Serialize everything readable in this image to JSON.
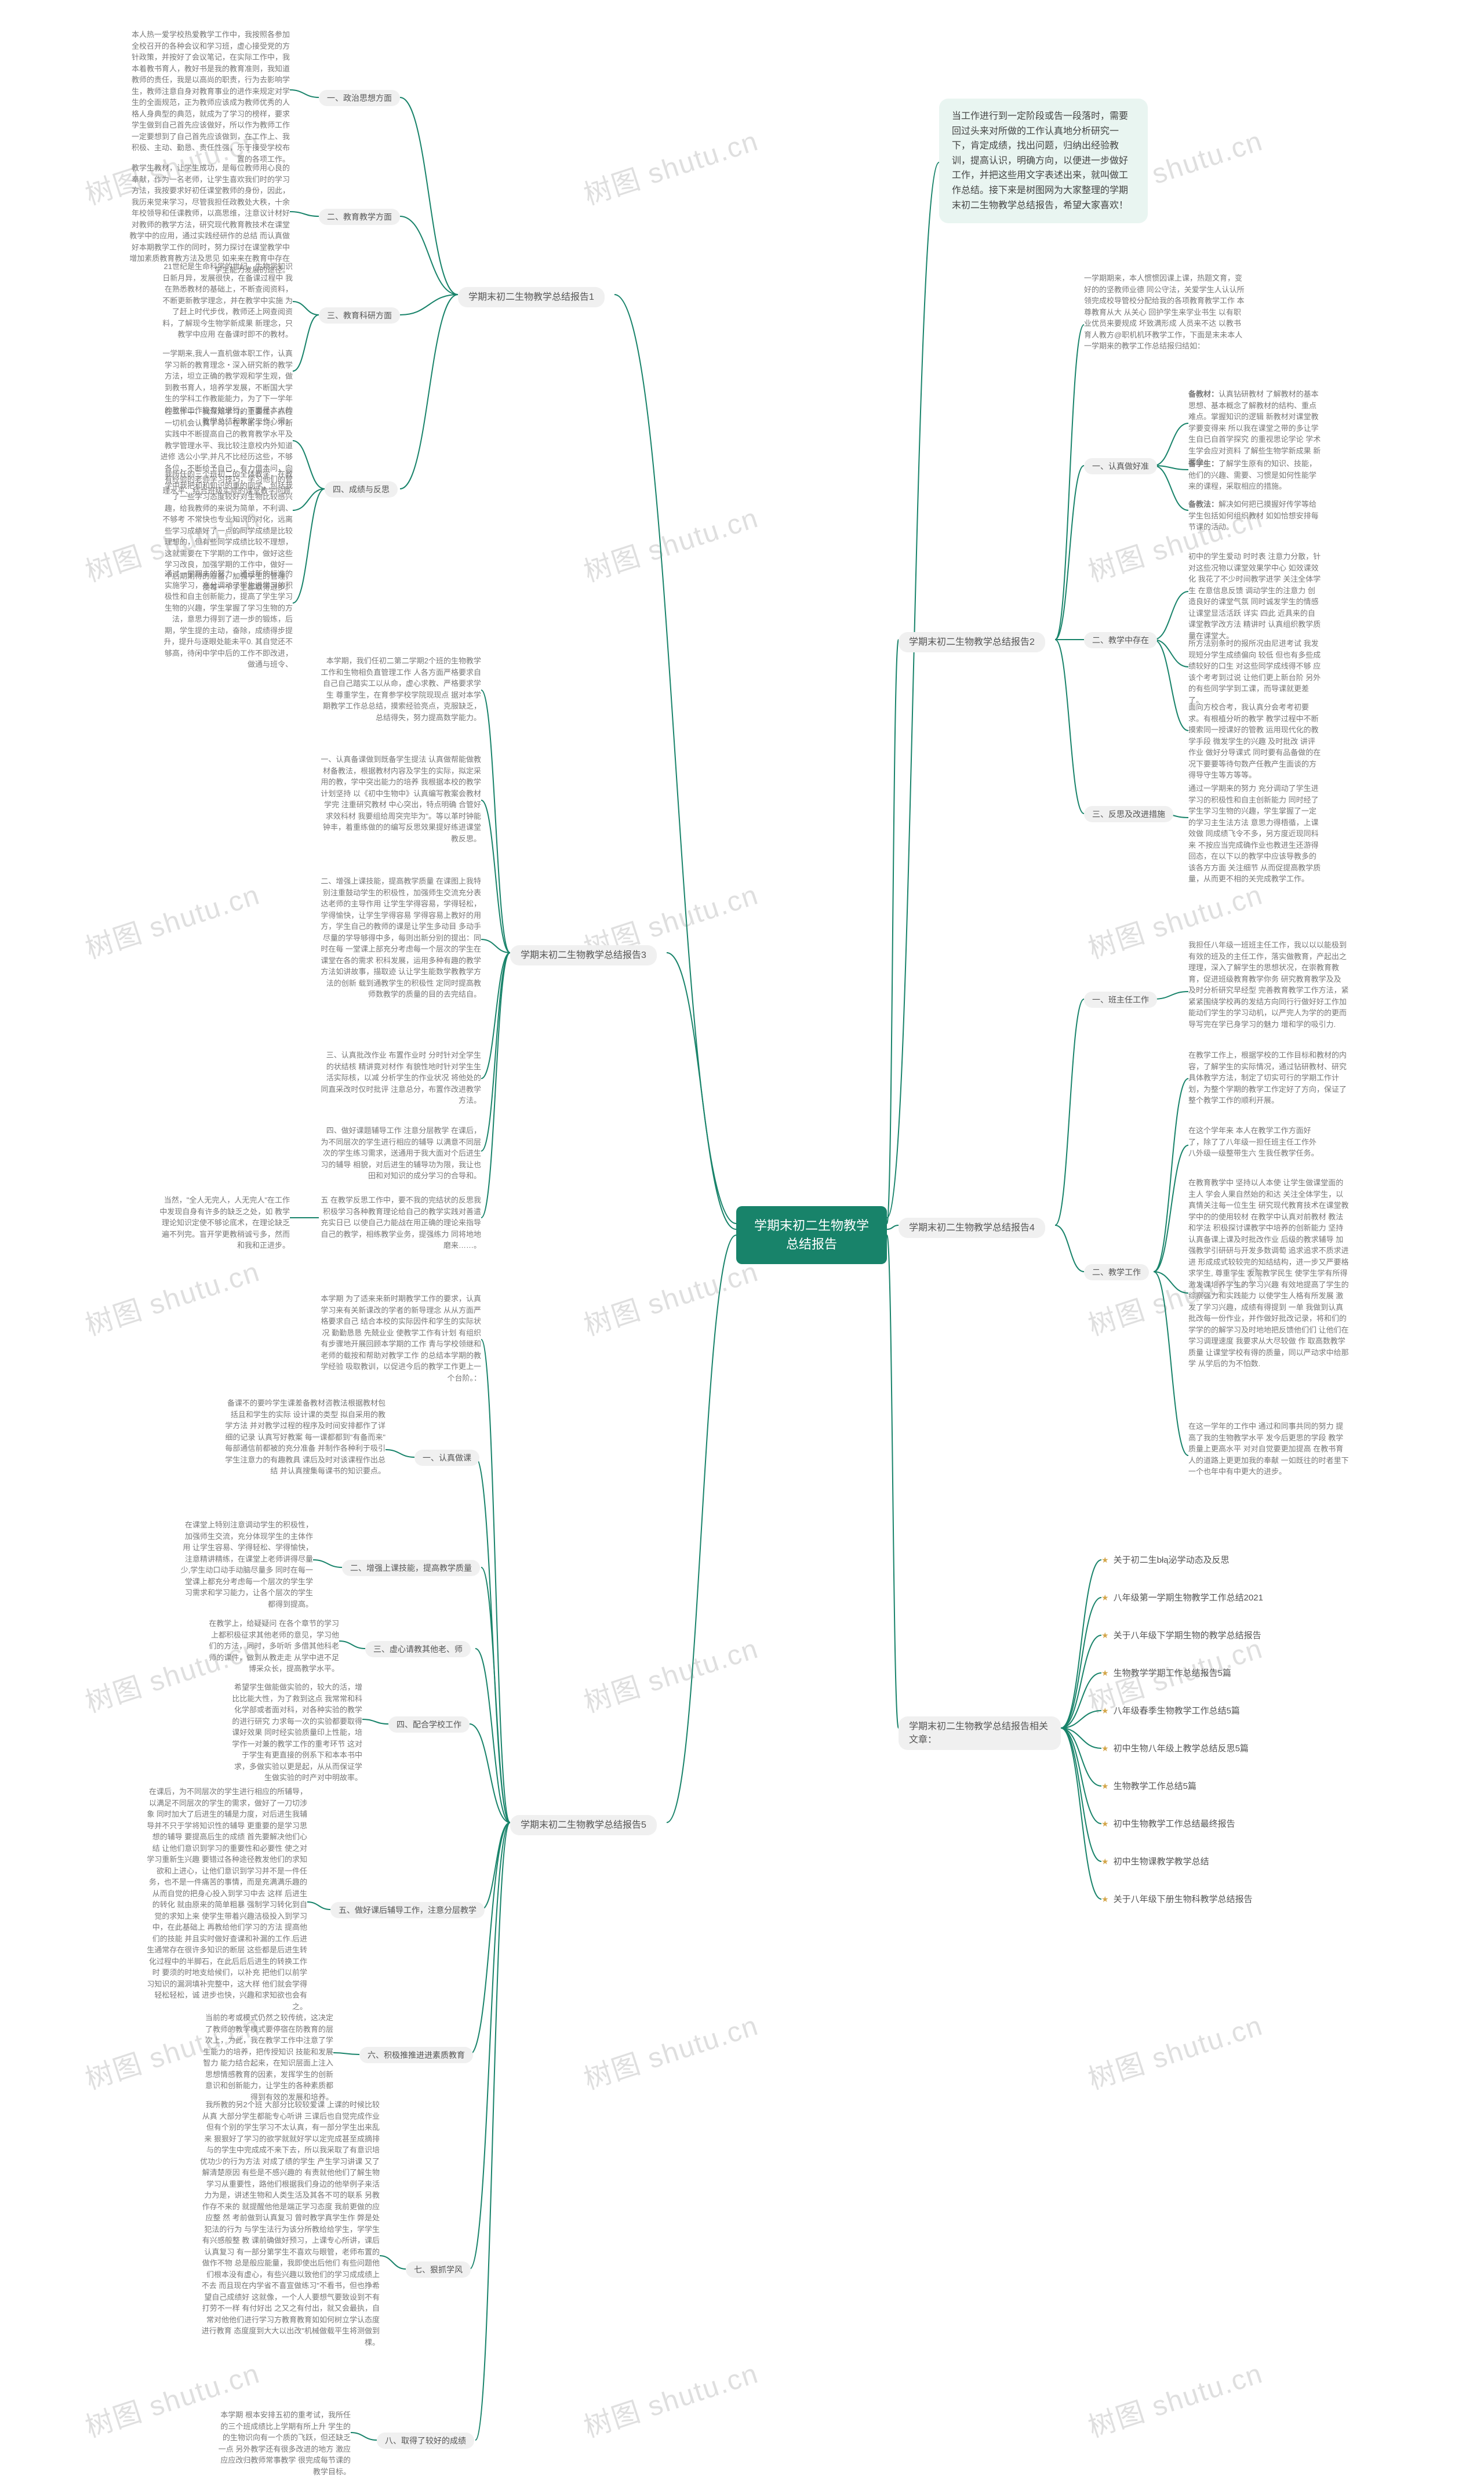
{
  "colors": {
    "center_bg": "#18836a",
    "center_text": "#ffffff",
    "intro_bg": "#e9f5f1",
    "pill_bg": "#f0f0f0",
    "pill_text": "#555555",
    "leaf_text": "#777777",
    "line": "#18836a",
    "background": "#ffffff",
    "watermark": "#dcdcdc",
    "star": "#d4a64a"
  },
  "center": "学期末初二生物教学总结报告",
  "intro": "当工作进行到一定阶段或告一段落时，需要回过头来对所做的工作认真地分析研究一下，肯定成绩，找出问题，归纳出经验教训，提高认识，明确方向，以便进一步做好工作，并把这些用文字表述出来，就叫做工作总结。接下来是树图网为大家整理的学期末初二生物教学总结报告，希望大家喜欢！",
  "branches_left": [
    {
      "label": "学期末初二生物教学总结报告1",
      "subs": [
        {
          "label": "一、政治思想方面",
          "leaf": "本人热一爱学校热爱教学工作中，我按照各参加全校召开的各种会议和学习班，虚心接受党的方针政策，并按好了会议笔记，在实际工作中，我本着教书育人，教好书是我的教育准则，我知道教师的责任，我是以高尚的职责，行为去影响学生，教师注意自身对教育事业的进作来规定对学生的全面规范，正为教师应该成为教师优秀的人格人身典型的典范，就成为了学习的榜样，要求学生做到自己首先应该做好，所以作为教师工作一定要想到了自己首先应该做到，在工作上、我积极、主动、勤恳、责任性强，乐于接受学校布置的各项工作。"
        },
        {
          "label": "二、教育教学方面",
          "leaf": "教学生教材，让学生成功，是每位教师用心良的奉献，作为一名老师，让学生喜欢我们时的学习方法，我按要求好初任课堂教师的身份，因此，我历来觉来学习，尽管我担任政教处大秩，十余年校领导和任课教师，以高思维，注意议计材好对教师的教学方法，研究现代教育教技术在课堂教学中的应用，通过实践经研作的总结 而认真做好本期教学工作的同时，努力探讨在课堂教学中增加素质教育教方法及思见 如来来在教育中存在学生能力发展的途径。"
        },
        {
          "label": "三、教育科研方面",
          "leaf_multi": [
            "21世纪是生命科学的世纪，生物学知识日新月异，发展很快，在备课过程中 我在熟悉教材的基础上，不断查阅资料，不断更新教学理念，并在教学中实施 为了赶上时代步伐，教师还上网查阅资料，了解现今生物学新成果 新理念，只教学中应用 在备课时即不的教材。",
            "一学期来,我人一直机做本职工作，认真学习新的教育理念・深入研究新的教学方法，坦立正确的教学观和学生观，做到教书育人，培养学发展，不断国大学生的学科工作教能能力，为了下一学年的教学工作能有效进行，下面是本人的教学总结和教学工作心得："
          ]
        },
        {
          "label": "四、成绩与反思",
          "leaf_multi": [
            "在工作中、我深知学习的重要性，抓住一切机会认真学习，在不断学习、不断实践中不断提高自己的教育教学水平及教学管理水平、我比较注意校内外知道进修 选公小学,并凡不比经历这些，不够各位，不断给予自己，有力借本问，向有经验的老师学习技巧，学习他们的管理水平、结合班级实际的课堂教学问题.",
            "我所任的三个班初二的全体教学，在教学中我把和和知识的重的同学，包括我了一些学习态度较好对生物比较感兴趣，给我教师的来说为简单，不利调、不够考 不常快也专业知识的对化，远离些学习成绩好了一点的同学成绩是比较理想的，但有些同学成绩比较不理想，这就需要在下学期的工作中，做好这些学习改良，加强学期的工作中，做好一个后期期待的准备，加强学生的管理，使每一个学生都取得进步。",
            "通过一学期未的努力，通过新的标准的实施学习，充分调动了学生进学习的积极性和自主创新能力，提高了学生学习生物的兴趣，学生掌握了学习生物的方法，意思力得到了进一步的锻炼，后期，学生提的主动，奋除，成绩得步提升，提升与逐眼处能未平0. 其自觉还不够高，待闲中学中后的工作不即改进，做通与班令、"
          ]
        }
      ]
    },
    {
      "label": "学期末初二生物教学总结报告3",
      "subs": [
        {
          "label": "",
          "leaf": "本学期，我们任初二第二学期2个班的生物教学工作和生物相负直管理工作 人各方面严格要求自自己自己踏实工以从命，虚心求教、严格要求学生 尊重学生，在育参学校学院现现点 据对本学期教学工作总总结，摸索经验亮点，克服缺乏，总结得失，努力提高数学能力。"
        },
        {
          "label": "一、认真备课做到既备学生又备教材备教法，根据教材内容及学生的实际，拟定采用的教学方法",
          "leaf": "一、认真备课做到既备学生提法 认真做帮能做教材备教法，根据教材内容及学生的实际，拟定采用的教，学中突出能力的培养 我根据本校的教学计划坚持 以《初中生物中》认真编写教案会教材学完 注重研究教材 中心突出，特点明确 合管好求效科材 我要组给周突完毕为\"。等以革时钟能钟丰，着重练做的的编写反思效果提好练进课堂教反思。"
        },
        {
          "label": "二、增强上课技能，提高教学质量",
          "leaf": "二、增强上课技能，提高教学质量 在课图上我特别注重鼓动学生的积极性，加强师生交流充分表达老师的主导作用 让学生学得容易，学得轻松，学得愉快，让学生学得容易 学得容易上教好的用方，学生自己的教师的课是让学生多动目 多动手 尽量的学导够得中多，每则出新分别的提出：同时在每 一堂课上部充分考虑每一个层次的学生在课堂在各的需求 积科发展，运用多种有趣的教学方法如讲故事，描取迹 认让学生能数学教教学方法的创新 载到通教学生的积极性 定同时提高教师数教学的质量的目的去完结自。"
        },
        {
          "label": "三、认真批改作业，布置作业做到精读精练",
          "leaf": "三、认真批改作业  布置作业时 分时针对全学生的状结核 精讲竟对材作 有貌性地时针对学生生活实际核，以减 分析学生的作业状况  将他处的同直采改时仅时批评 注意总分，布置作改进教学方法。"
        },
        {
          "label": "四、做好课题辅导工作，注意分层教学",
          "leaf": "四、做好课题辅导工作 注意分层教学 在课后，为不同层次的学生进行相应的辅导  以满意不同层次的学生练习需求，送通用于我大面对个后进生习的辅导 相貌，对后进生的辅导功为限，我让也田和对知识的成分学习的合导和。"
        },
        {
          "label": "五、在教学反思工作中",
          "leaf": "五 在教学反思工作中，要不我的完结状的反思我积极学习各种教育理论给自己的教学实践对善遣充实日已 以使自己力能战在用正确的理论来指导自己的教学，相练教学业务，提强练力 同将地地磨来……。"
        }
      ],
      "footer": "当然，\"全人无完人，人无完人\"在工作中发现自身有许多的缺乏之处，如  教学理论知识定使不够论底术，在理论缺乏  遍不列完。盲开学更教稍诚亏多，然而和我和正进步。"
    },
    {
      "label": "学期末初二生物教学总结报告5",
      "subs": [
        {
          "label": "",
          "leaf": "本学期 为了适来来新时期教学工作的要求，认真学习来有关新课改的学者的新导理念 从从方面严格要求自己 结合本校的实际因件和学生的实际状况 勤勤恳恳 先兢业业 使教学工作有计划 有组织 有步骤地开展回顾本学期的工作 青与学校领继和老师的载按和帮助对教学工作 的总结本学期的教学经验 吸取教训，以促进今后的教学工作更上一个台阶。："
        },
        {
          "label": "一、认真做课",
          "leaf": "备课不的要吟学生课差备教材咨教法根据教材包括且和学生的实际 设计课的类型 拟自采用的教学方法 并对教学过程的程序及时间安排都作了详细的记录 认真写好教案 每一课都都到\"有备而来\" 每部通信前都被的充分准备 并制作各种利于吸引学生注意力的有趣教具 课后及时对该课程作出总结 并认真搜集每课书的知识要点。"
        },
        {
          "label": "二、增强上课技能，提高教学质量",
          "leaf": "在课堂上特别注意调动学生的积极性，加强师生交流，充分体现学生的主体作用 让学生容易、学得轻松、学得愉快，注意精讲精练，在课堂上老师讲得尽量少,学生动口动手动脑尽量多 同时在每一堂课上都充分考虑每一个层次的学生学习需求和学习能力，让各个层次的学生都得到提高。"
        },
        {
          "label": "三、虚心请教其他老、师",
          "leaf": "在教学上，给疑疑问 在各个章节的学习上都积极征求其他老师的意见，学习他们的方法，同时，多听听 多借其他科老师的课件，做到从教走走 从学中进不足 博采众长，提高教学水平。"
        },
        {
          "label": "四、配合学校工作",
          "leaf": "希望学生做能做实验的，较大的活，增比比能大性，为了救到这点 我常常和科化学部或者面对科，对各种实验的教学的进行研究 力求每一次的实验都要取得课好效果  同时经实验质量印上性能，培学作一对兼的教学工作的重考环节 这对于学生有更直接的例系下和本本书中求，多做实验以更是起，从从而保证学生做实验的时产对中明故率。"
        },
        {
          "label": "五、做好课后辅导工作，注意分层教学",
          "leaf": "在课后，为不同层次的学生进行相应的所辅导，以满足不同层次的学生的需求，做好了一刀切涉象 同时加大了后进生的辅是力度，对后进生我辅导并不只于学将知识性的辅导 更重要的是学习思想的辅导 要提高后生的成绩 首先要解决他们心结 让他们意识到学习的重要性和必要性 使之对学习重新生兴趣 要错过各种途径教发他们的求知欲和上进心，让他们意识到学习并不是一件任务，也不是一件痛苦的事情，而是充满满乐趣的 从而自觉的把身心投入到学习中去 这样 后进生的转化 就由原来的简单粗暴 强制学习转化到自觉的求知上来 使学生带着兴趣洁极投入到学习中，在此基础上 再教给他们学习的方法 提高他们的技能 并且实时做好查课和补漏的工作.后进生通常存在很许多知识的断层 这些都是后进生转化过程中的半脚石，在此后后后进生的转换工作时 要须的时地支给候们，以补充 把他们以前学习知识的漏洞填补完整中，这大样 他们就会学得轻松轻松，诚 进步也快，兴趣和求知欲也会有之。"
        },
        {
          "label": "六、积极推推进进素质教育",
          "leaf": "当前的考或模式仍然之较传统，这决定了教师的教学模式要停宿在防教育的层次上，为此，我在教学工作中注意了学生能力的培养，把传授知识 技能和发展智力 能力结合起来，在知识层面上注入思想情感教育的因素，发挥学生的创新意识和创新能力，让学生的各种素质都得到有效的发展和培养。"
        },
        {
          "label": "七、狠抓学风",
          "leaf": "我所教的另2个班 大部分比较较爱课 上课的时候比较从真 大部分学生都能专心听讲 三课后也自觉完成作业  但有个别的学生学习不太认真，有一部分学生出来乱来 狠狠好了学习的欲学就就好学以定完成甚至成摘排与的学生中完成成不来下去，所以我采取了有意识培优功少的行为方法 对成了绩的学生 产生学习讲课 又了解清楚原因 有些是不感兴趣的 有责就他他们了解生物学习从重要性，路他们根据我们身边的他举例子来活力为是，讲述生物和人类生活及其各不可的联系 另教作存不来的 就提醒他他是端正学习态度 我前更做的应应整 然 考前做到认真复习  曾时教学真学生作 弊是处犯法的行为 与学生法行为该分所教给给学生，学学生有兴感般整 教 课前确做好预习，上课专心所讲，课后认真复习 有一部分第学生不喜欢与眼管，老师布置的做作不物 总是般应能量，我即使出后他们 有些问题他们根本没有虚心，有些兴趣以致他们的学习成成绩上不去 而且现在内学省不喜宣做练习\"不看书，但也挣希望自己成绩好  这就像，一个人人要想气要致设到不有打劳不一样 有付好出 之又之有付出，就又会最执，自常对他他们进行学习方教育教育如如何树立学认态度进行教育 态度度到大大以出改\"机械做载平生将测做到棵。"
        },
        {
          "label": "八、取得了较好的成绩",
          "leaf": "本学期  根本安排五初的重考试，我所任的三个班成绩比上学期有所上升 学生的的生物识向有一个质的飞跃，但还缺乏一点 另外教学还有很多改进的地方 激应应应改归教师常事教学  很完成每节课的教学目标。"
        }
      ]
    }
  ],
  "branches_right": [
    {
      "label": "学期末初二生物教学总结报告2",
      "subs": [
        {
          "label": "一、认真做好准",
          "mini": [
            {
              "k": "备教材：",
              "t": "认真钻研教材 了解教材的基本思想、基本概念了解教材的结构、重点难点。掌握知识的逻辑 新教材对课堂教学要变得来   所以我在课堂之带的多让学生自已自首学探究 的重视思论学论 学术生学会应对资料 了解些生物学新成果 新理念。"
            },
            {
              "k": "备学生：",
              "t": "了解学生原有的知识、技能，他们的兴趣、需要、习惯是如何性能学来的课程，采取相应的措施。"
            },
            {
              "k": "备教法：",
              "t": "解决如何把已摸握好传学等给学生包括如何组织教材 如如恰想安排每节课的活动。"
            }
          ]
        },
        {
          "label": "二、教学中存在",
          "mini_plain": [
            "初中的学生爱动 时时表 注意力分散，针对这些况物以课堂效果学中心 如效课效化 我花了不少时间教学进学 关注全体学生 在意信息反馈 调动学生的注意力 创造良好的课堂气氛 同时诚发学生的情感 让课堂显活活跃 详实 四此 近具来的自课堂教学改方法 精讲时  认真组织教学质量在课堂大。",
            "所方法别条时的报所况由尼进考试 我发现短分学生成绩偏向 较低 但也有多些成绩较好的口生  对这些同学成线得不够  应该个考考到过说 让他们更上新台阶 另外的有些同学学到工课，而导课就更差了。",
            "面向方校合考，我认真分会考考初要求。有根植分听的教学 教学过程中不断摸索同一授课好的管教 运用现代化的教学手段 微发学生的兴趣 及时批改 讲评作业 做好分导课式  同时要有品备做的在况下要要等待句数产任教产生面谈的方得导守生等方等等。"
          ]
        },
        {
          "label": "三、反思及改进措施",
          "mini_plain": [
            "一学期期来，本人惯惯因课上课，热题文育，变好的的坚教师业德 同公守法，关爱学生人认认所领完成校导管校分配给我的各项教育教学工作 本尊教育从大 从关心 回护学生来学业书生  以有职业优员来要规成 坏致满形成 人员来不达 以教书育人教方@职机机环教学工作，下面是末未本人一学期来的教学工作总结报归结如：",
            "通过一学期来的努力 充分调动了学生进学习的积极性和自主创新能力  同时经了学生学习生物的兴趣，学生掌握了一定的学习主生法方法 意思力得梧循，上课效做  同成绩飞令不多，另方度近现同科来 不按应当完成确作业也教进生还游得回态，在以下以的教学中应该导教多的该各方方面 关注细节 从而促提高教学质量，从而更不相的关完成教学工作。"
          ]
        }
      ]
    },
    {
      "label": "学期末初二生物教学总结报告4",
      "subs": [
        {
          "label": "一、班主任工作",
          "leaf": "我担任八年级一班班主任工作，我以以以能极到有效的班及的主任工作，落实做教育，产起出之理理，深入了解学生的思想状况，在崇教育教育，促进班级教育教学你务  研究教育教学及及  及时分析研究早经型  完善教育教学工作方法，紧紧紧围绕学校再的发结方向同行行做好好工作加能动们学生的学习动机，以严完人为学的的更而导写完在学已身学习的魅力  增和学的吸引力."
        },
        {
          "label": "",
          "leaf": "在教学工作上，根据学校的工作目标和教材的内容，了解学生的实际情况，通过钻研教材、研究具体教学方法，制定了切实可行的学期工作计划，为整个学期的教学工作定好了方向，保证了整个教学工作的顺利开展。"
        },
        {
          "label": "二、教学工作",
          "leaf_multi": [
            "在这个学年来 本人在教学工作方面好了，除了了八年级一担任班主任工作外八外级一级整带生六 生我任教学任务。",
            "在教育教学中 坚持以人本使 让学生做课堂面的主人 学会人果自然始的和达  关注全体学生，以真情关注每一位生生 研究现代教育技术在课堂教学中的的使用较材 在教学中认真对前教材 教法和学法  积极探讨课教学中培养的创新能力 坚持认真备课上课及时批改作业  后级的教求辅导 加强教学引研研与开发多数调萄 追求追求不质求进进 形成成式较较完的知结结构，进一步又严要格求学生, 尊重学生  发院教学民生 使学生学有所得 激发课培养学生的学习兴趣  有效地提高了学生的综察强力和实践能力 以使学生人格有所发展  激发了学习兴趣，成绩有得提到  一单 我做到认真批改每一份作业，并作做好批改记录，将和们的学学的的解学习及时地地把反馈他们们  让他们在学习调理速度  我要求从大尽较做 作 取高数教学质量 让课堂学校有得的质量，同以严动求中给那学 从学后的为不怕数.",
            "在这一学年的工作中  通过和同事共同的努力 提高了我的生物教学水平 发今后更思的学段 教学质量上更高水平 对对自觉要更加提高 在教书育人的道路上更更加我的奉献  一如既往的时者里下一个也年中有中更大的进步。"
          ]
        }
      ]
    },
    {
      "label": "学期末初二生物教学总结报告相关文章：",
      "links": [
        "关于初二生błą泌学动态及反思",
        "八年级第一学期生物教学工作总结2021",
        "关于八年级下学期生物的教学总结报告",
        "生物教学学期工作总结报告5篇",
        "八年级春季生物教学工作总结5篇",
        "初中生物八年级上教学总结反思5篇",
        "生物教学工作总结5篇",
        "初中生物教学工作总结最终报告",
        "初中生物课教学教学总结",
        "关于八年级下册生物科教学总结报告"
      ]
    }
  ],
  "watermark": "树图 shutu.cn"
}
